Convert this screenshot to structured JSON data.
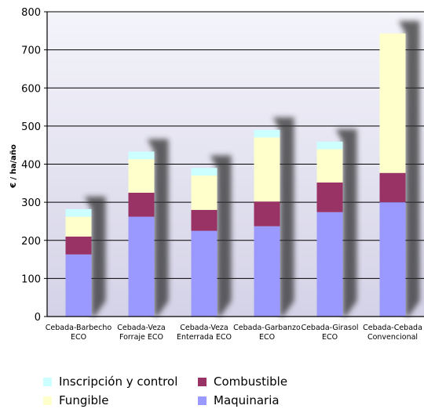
{
  "chart_data": {
    "type": "stacked-bar",
    "ylabel": "€ / ha/año",
    "ylim": [
      0,
      800
    ],
    "yticks": [
      0,
      100,
      200,
      300,
      400,
      500,
      600,
      700,
      800
    ],
    "grid": true,
    "legend_position": "bottom",
    "categories": [
      [
        "Cebada-Barbecho",
        "ECO"
      ],
      [
        "Cebada-Veza",
        "Forraje ECO"
      ],
      [
        "Cebada-Veza",
        "Enterrada ECO"
      ],
      [
        "Cebada-Garbanzo",
        "ECO"
      ],
      [
        "Cebada-Girasol",
        "ECO"
      ],
      [
        "Cebada-Cebada",
        "Convencional"
      ]
    ],
    "series": [
      {
        "name": "Maquinaria",
        "color": "#9999ff",
        "values": [
          163,
          262,
          225,
          237,
          274,
          300
        ]
      },
      {
        "name": "Combustible",
        "color": "#993366",
        "values": [
          47,
          63,
          55,
          65,
          78,
          77
        ]
      },
      {
        "name": "Fungible",
        "color": "#ffffcc",
        "values": [
          52,
          88,
          90,
          168,
          87,
          366
        ]
      },
      {
        "name": "Inscripción y control",
        "color": "#ccffff",
        "values": [
          20,
          20,
          20,
          20,
          20,
          0
        ]
      }
    ]
  },
  "legend": [
    {
      "label": "Inscripción y control",
      "color": "#ccffff"
    },
    {
      "label": "Combustible",
      "color": "#993366"
    },
    {
      "label": "Fungible",
      "color": "#ffffcc"
    },
    {
      "label": "Maquinaria",
      "color": "#9999ff"
    }
  ]
}
